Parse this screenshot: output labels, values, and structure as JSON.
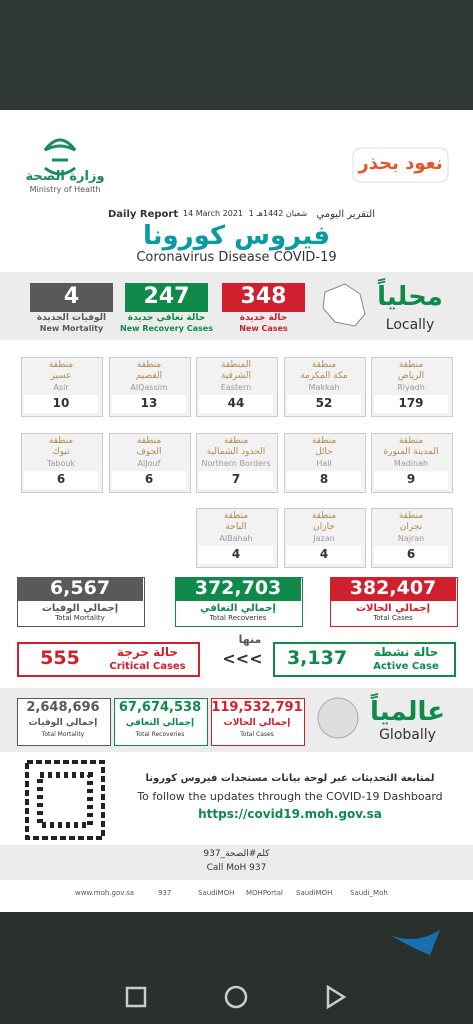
{
  "header": {
    "ministry_ar": "وزارة الصحة",
    "ministry_en": "Ministry of Health",
    "campaign": "نعود بحذر",
    "report_ar": "التقرير اليومي",
    "date_hijri": "1 شعبان 1442هـ",
    "date": "14 March 2021",
    "report_en": "Daily Report",
    "title_ar": "فيروس كورونا",
    "title_en": "Coronavirus Disease COVID-19"
  },
  "local": {
    "label_ar": "محلياً",
    "label_en": "Locally",
    "stats": [
      {
        "value": 348,
        "ar": "حالة جديدة",
        "en": "New Cases"
      },
      {
        "value": 247,
        "ar": "حالة تعافي جديدة",
        "en": "New Recovery Cases"
      },
      {
        "value": 4,
        "ar": "الوفيات الجديدة",
        "en": "New Mortality"
      }
    ]
  },
  "regions": [
    {
      "line1": "منطقة",
      "line2": "الرياض",
      "en": "Riyadh",
      "value": 179
    },
    {
      "line1": "منطقة",
      "line2": "مكة المكرمة",
      "en": "Makkah",
      "value": 52
    },
    {
      "line1": "المنطقة",
      "line2": "الشرقية",
      "en": "Eastern",
      "value": 44
    },
    {
      "line1": "منطقة",
      "line2": "القصيم",
      "en": "AlQassim",
      "value": 13
    },
    {
      "line1": "منطقة",
      "line2": "عسير",
      "en": "Asir",
      "value": 10
    },
    {
      "line1": "منطقة",
      "line2": "المدينة المنورة",
      "en": "Madinah",
      "value": 9
    },
    {
      "line1": "منطقة",
      "line2": "حائل",
      "en": "Hail",
      "value": 8
    },
    {
      "line1": "منطقة",
      "line2": "الحدود الشمالية",
      "en": "Northern Borders",
      "value": 7
    },
    {
      "line1": "منطقة",
      "line2": "الجوف",
      "en": "AlJouf",
      "value": 6
    },
    {
      "line1": "منطقة",
      "line2": "تبوك",
      "en": "Tabouk",
      "value": 6
    },
    {
      "line1": "منطقة",
      "line2": "نجران",
      "en": "Najran",
      "value": 6
    },
    {
      "line1": "منطقة",
      "line2": "جازان",
      "en": "Jazan",
      "value": 4
    },
    {
      "line1": "منطقة",
      "line2": "الباحة",
      "en": "AlBahah",
      "value": 4
    }
  ],
  "totals": [
    {
      "value": "382,407",
      "ar": "إجمالي الحالات",
      "en": "Total Cases"
    },
    {
      "value": "372,703",
      "ar": "إجمالي التعافي",
      "en": "Total Recoveries"
    },
    {
      "value": "6,567",
      "ar": "إجمالي الوفيات",
      "en": "Total Mortality"
    }
  ],
  "active": {
    "value": "3,137",
    "ar": "حالة نشطة",
    "en": "Active Case",
    "of_which": "منها",
    "arrows": "<<<"
  },
  "critical": {
    "value": 555,
    "ar": "حالة حرجة",
    "en": "Critical Cases"
  },
  "global": {
    "label_ar": "عالمياً",
    "label_en": "Globally",
    "stats": [
      {
        "value": "119,532,791",
        "ar": "إجمالي الحالات",
        "en": "Total Cases"
      },
      {
        "value": "67,674,538",
        "ar": "إجمالي التعافي",
        "en": "Total Recoveries"
      },
      {
        "value": "2,648,696",
        "ar": "إجمالي الوفيات",
        "en": "Total Mortality"
      }
    ]
  },
  "footer": {
    "follow_ar": "لمتابعة التحديثات عبر لوحة بيانات مستجدات فيروس كورونا",
    "follow_en": "To follow the updates through the COVID-19 Dashboard",
    "url": "https://covid19.moh.gov.sa",
    "call_ar": "كلم#الصحة_937",
    "call_en": "Call MoH 937",
    "social": [
      "www.moh.gov.sa",
      "937",
      "SaudiMOH",
      "MOHPortal",
      "SaudiMOH",
      "Saudi_Moh"
    ]
  }
}
